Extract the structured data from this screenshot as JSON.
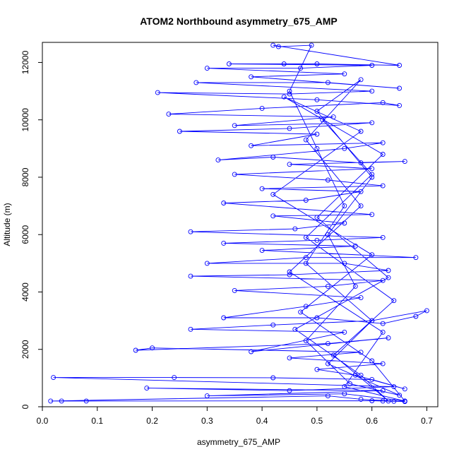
{
  "chart_data": {
    "type": "line",
    "title": "ATOM2 Northbound asymmetry_675_AMP",
    "xlabel": "asymmetry_675_AMP",
    "ylabel": "Altitude (m)",
    "xlim": [
      0.0,
      0.72
    ],
    "ylim": [
      0,
      12700
    ],
    "xticks": [
      0.0,
      0.1,
      0.2,
      0.3,
      0.4,
      0.5,
      0.6,
      0.7
    ],
    "xtick_labels": [
      "0.0",
      "0.1",
      "0.2",
      "0.3",
      "0.4",
      "0.5",
      "0.6",
      "0.7"
    ],
    "yticks": [
      0,
      2000,
      4000,
      6000,
      8000,
      10000,
      12000
    ],
    "ytick_labels": [
      "0",
      "2000",
      "4000",
      "6000",
      "8000",
      "10000",
      "12000"
    ],
    "grid": false,
    "series": [
      {
        "color": "#0000ff",
        "marker": "open-circle",
        "points": [
          [
            0.62,
            200
          ],
          [
            0.66,
            180
          ],
          [
            0.58,
            260
          ],
          [
            0.52,
            380
          ],
          [
            0.015,
            200
          ],
          [
            0.035,
            200
          ],
          [
            0.08,
            200
          ],
          [
            0.6,
            210
          ],
          [
            0.64,
            190
          ],
          [
            0.66,
            200
          ],
          [
            0.55,
            450
          ],
          [
            0.3,
            380
          ],
          [
            0.62,
            560
          ],
          [
            0.19,
            650
          ],
          [
            0.45,
            560
          ],
          [
            0.64,
            700
          ],
          [
            0.02,
            1020
          ],
          [
            0.24,
            1020
          ],
          [
            0.42,
            1010
          ],
          [
            0.6,
            950
          ],
          [
            0.66,
            620
          ],
          [
            0.57,
            1100
          ],
          [
            0.5,
            1300
          ],
          [
            0.62,
            1500
          ],
          [
            0.45,
            1700
          ],
          [
            0.58,
            1900
          ],
          [
            0.2,
            2050
          ],
          [
            0.17,
            1970
          ],
          [
            0.52,
            2200
          ],
          [
            0.63,
            2400
          ],
          [
            0.38,
            1920
          ],
          [
            0.55,
            2600
          ],
          [
            0.27,
            2700
          ],
          [
            0.42,
            2850
          ],
          [
            0.6,
            3000
          ],
          [
            0.7,
            3350
          ],
          [
            0.68,
            3150
          ],
          [
            0.62,
            2900
          ],
          [
            0.5,
            3100
          ],
          [
            0.33,
            3100
          ],
          [
            0.48,
            3500
          ],
          [
            0.58,
            3800
          ],
          [
            0.35,
            4050
          ],
          [
            0.52,
            4200
          ],
          [
            0.62,
            4400
          ],
          [
            0.27,
            4550
          ],
          [
            0.45,
            4600
          ],
          [
            0.63,
            4750
          ],
          [
            0.55,
            5000
          ],
          [
            0.3,
            5000
          ],
          [
            0.48,
            5200
          ],
          [
            0.68,
            5200
          ],
          [
            0.4,
            5450
          ],
          [
            0.57,
            5600
          ],
          [
            0.33,
            5700
          ],
          [
            0.5,
            5800
          ],
          [
            0.62,
            5900
          ],
          [
            0.27,
            6100
          ],
          [
            0.46,
            6200
          ],
          [
            0.55,
            6400
          ],
          [
            0.42,
            6650
          ],
          [
            0.6,
            6700
          ],
          [
            0.33,
            7100
          ],
          [
            0.48,
            7200
          ],
          [
            0.58,
            7500
          ],
          [
            0.4,
            7600
          ],
          [
            0.62,
            7700
          ],
          [
            0.52,
            7900
          ],
          [
            0.35,
            8100
          ],
          [
            0.6,
            8300
          ],
          [
            0.45,
            8450
          ],
          [
            0.66,
            8550
          ],
          [
            0.58,
            8500
          ],
          [
            0.42,
            8700
          ],
          [
            0.32,
            8600
          ],
          [
            0.55,
            9000
          ],
          [
            0.62,
            9200
          ],
          [
            0.38,
            9100
          ],
          [
            0.5,
            9500
          ],
          [
            0.25,
            9600
          ],
          [
            0.45,
            9700
          ],
          [
            0.6,
            9900
          ],
          [
            0.35,
            9800
          ],
          [
            0.53,
            10100
          ],
          [
            0.23,
            10200
          ],
          [
            0.4,
            10400
          ],
          [
            0.62,
            10600
          ],
          [
            0.65,
            10500
          ],
          [
            0.5,
            10700
          ],
          [
            0.21,
            10950
          ],
          [
            0.45,
            10900
          ],
          [
            0.6,
            11000
          ],
          [
            0.28,
            11300
          ],
          [
            0.52,
            11300
          ],
          [
            0.65,
            11100
          ],
          [
            0.38,
            11500
          ],
          [
            0.55,
            11600
          ],
          [
            0.3,
            11800
          ],
          [
            0.47,
            11800
          ],
          [
            0.6,
            11900
          ],
          [
            0.34,
            11950
          ],
          [
            0.44,
            11950
          ],
          [
            0.5,
            11950
          ],
          [
            0.65,
            11900
          ],
          [
            0.42,
            12600
          ],
          [
            0.43,
            12550
          ],
          [
            0.49,
            12600
          ],
          [
            0.45,
            11000
          ],
          [
            0.5,
            9000
          ],
          [
            0.55,
            7000
          ],
          [
            0.48,
            5000
          ],
          [
            0.6,
            3000
          ],
          [
            0.52,
            1500
          ],
          [
            0.65,
            400
          ],
          [
            0.56,
            800
          ],
          [
            0.48,
            2300
          ],
          [
            0.57,
            4200
          ],
          [
            0.52,
            6000
          ],
          [
            0.6,
            8000
          ],
          [
            0.5,
            10300
          ],
          [
            0.58,
            11400
          ],
          [
            0.48,
            9300
          ],
          [
            0.58,
            7000
          ],
          [
            0.45,
            4700
          ],
          [
            0.62,
            2600
          ],
          [
            0.55,
            700
          ],
          [
            0.66,
            200
          ],
          [
            0.6,
            1600
          ],
          [
            0.47,
            3300
          ],
          [
            0.6,
            5300
          ],
          [
            0.42,
            7400
          ],
          [
            0.58,
            9600
          ],
          [
            0.44,
            10800
          ],
          [
            0.62,
            8800
          ],
          [
            0.5,
            6600
          ],
          [
            0.63,
            4500
          ],
          [
            0.46,
            2700
          ],
          [
            0.58,
            1100
          ],
          [
            0.63,
            200
          ],
          [
            0.53,
            1800
          ],
          [
            0.64,
            3700
          ],
          [
            0.48,
            5900
          ],
          [
            0.6,
            8100
          ],
          [
            0.51,
            10000
          ]
        ]
      }
    ]
  }
}
